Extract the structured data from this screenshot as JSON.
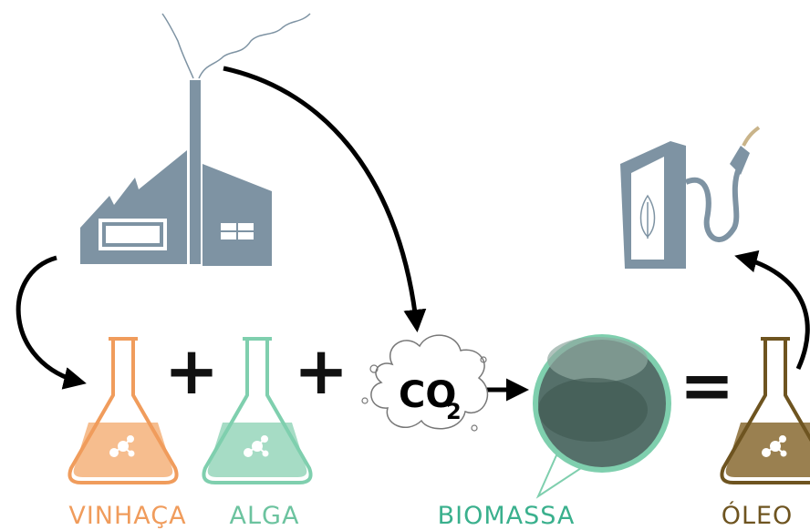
{
  "items": [
    {
      "label": "VINHAÇA"
    },
    {
      "label": "ALGA"
    },
    {
      "label": "BIOMASSA"
    },
    {
      "label": "ÓLEO"
    }
  ],
  "operators": [
    "+",
    "+",
    "="
  ],
  "co2": {
    "text": "CO",
    "subscript": "2"
  }
}
